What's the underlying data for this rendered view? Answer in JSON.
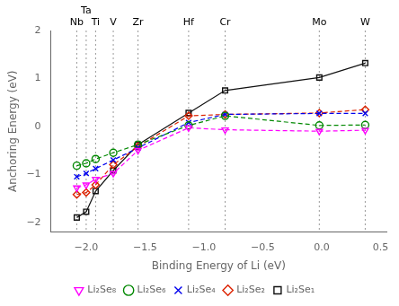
{
  "chart_data": {
    "type": "line",
    "xlabel": "Binding Energy of Li (eV)",
    "ylabel": "Anchoring Energy (eV)",
    "xlim": [
      -2.3,
      0.55
    ],
    "ylim": [
      -2.2,
      2.0
    ],
    "xticks": [
      {
        "value": -2.0,
        "label": "−2.0"
      },
      {
        "value": -1.5,
        "label": "−1.5"
      },
      {
        "value": -1.0,
        "label": "−1.0"
      },
      {
        "value": -0.5,
        "label": "−0.5"
      },
      {
        "value": 0.0,
        "label": "0.0"
      },
      {
        "value": 0.5,
        "label": "0.5"
      }
    ],
    "yticks": [
      {
        "value": -2.0,
        "label": "−2"
      },
      {
        "value": -1.0,
        "label": "−1"
      },
      0,
      1,
      2
    ],
    "grid": false,
    "annotations": [
      {
        "text": "Nb",
        "x": -2.08
      },
      {
        "text": "Ta",
        "x": -2.0
      },
      {
        "text": "Ti",
        "x": -1.92
      },
      {
        "text": "V",
        "x": -1.77
      },
      {
        "text": "Zr",
        "x": -1.56
      },
      {
        "text": "Hf",
        "x": -1.13
      },
      {
        "text": "Cr",
        "x": -0.82
      },
      {
        "text": "Mo",
        "x": -0.02
      },
      {
        "text": "W",
        "x": 0.37
      }
    ],
    "x": [
      -2.08,
      -2.0,
      -1.92,
      -1.77,
      -1.56,
      -1.13,
      -0.82,
      -0.02,
      0.37
    ],
    "series": [
      {
        "name": "Li₂Se₈",
        "color": "#ff00ff",
        "marker": "triangle_down",
        "line_style": "dashed",
        "values": [
          -1.28,
          -1.22,
          -1.1,
          -0.98,
          -0.5,
          -0.03,
          -0.07,
          -0.1,
          -0.08
        ]
      },
      {
        "name": "Li₂Se₆",
        "color": "#008800",
        "marker": "circle",
        "line_style": "dashed",
        "values": [
          -0.82,
          -0.77,
          -0.68,
          -0.55,
          -0.38,
          0.02,
          0.22,
          0.02,
          0.03
        ]
      },
      {
        "name": "Li₂Se₄",
        "color": "#0000ee",
        "marker": "x",
        "line_style": "dashed",
        "values": [
          -1.05,
          -0.98,
          -0.88,
          -0.7,
          -0.45,
          0.08,
          0.25,
          0.27,
          0.27
        ]
      },
      {
        "name": "Li₂Se₂",
        "color": "#dd2200",
        "marker": "diamond",
        "line_style": "dashed",
        "values": [
          -1.42,
          -1.38,
          -1.22,
          -0.8,
          -0.42,
          0.22,
          0.25,
          0.28,
          0.35
        ]
      },
      {
        "name": "Li₂Se₁",
        "color": "#111111",
        "marker": "square",
        "line_style": "solid",
        "values": [
          -1.9,
          -1.78,
          -1.35,
          -0.92,
          -0.38,
          0.28,
          0.75,
          1.02,
          1.32
        ]
      }
    ]
  }
}
